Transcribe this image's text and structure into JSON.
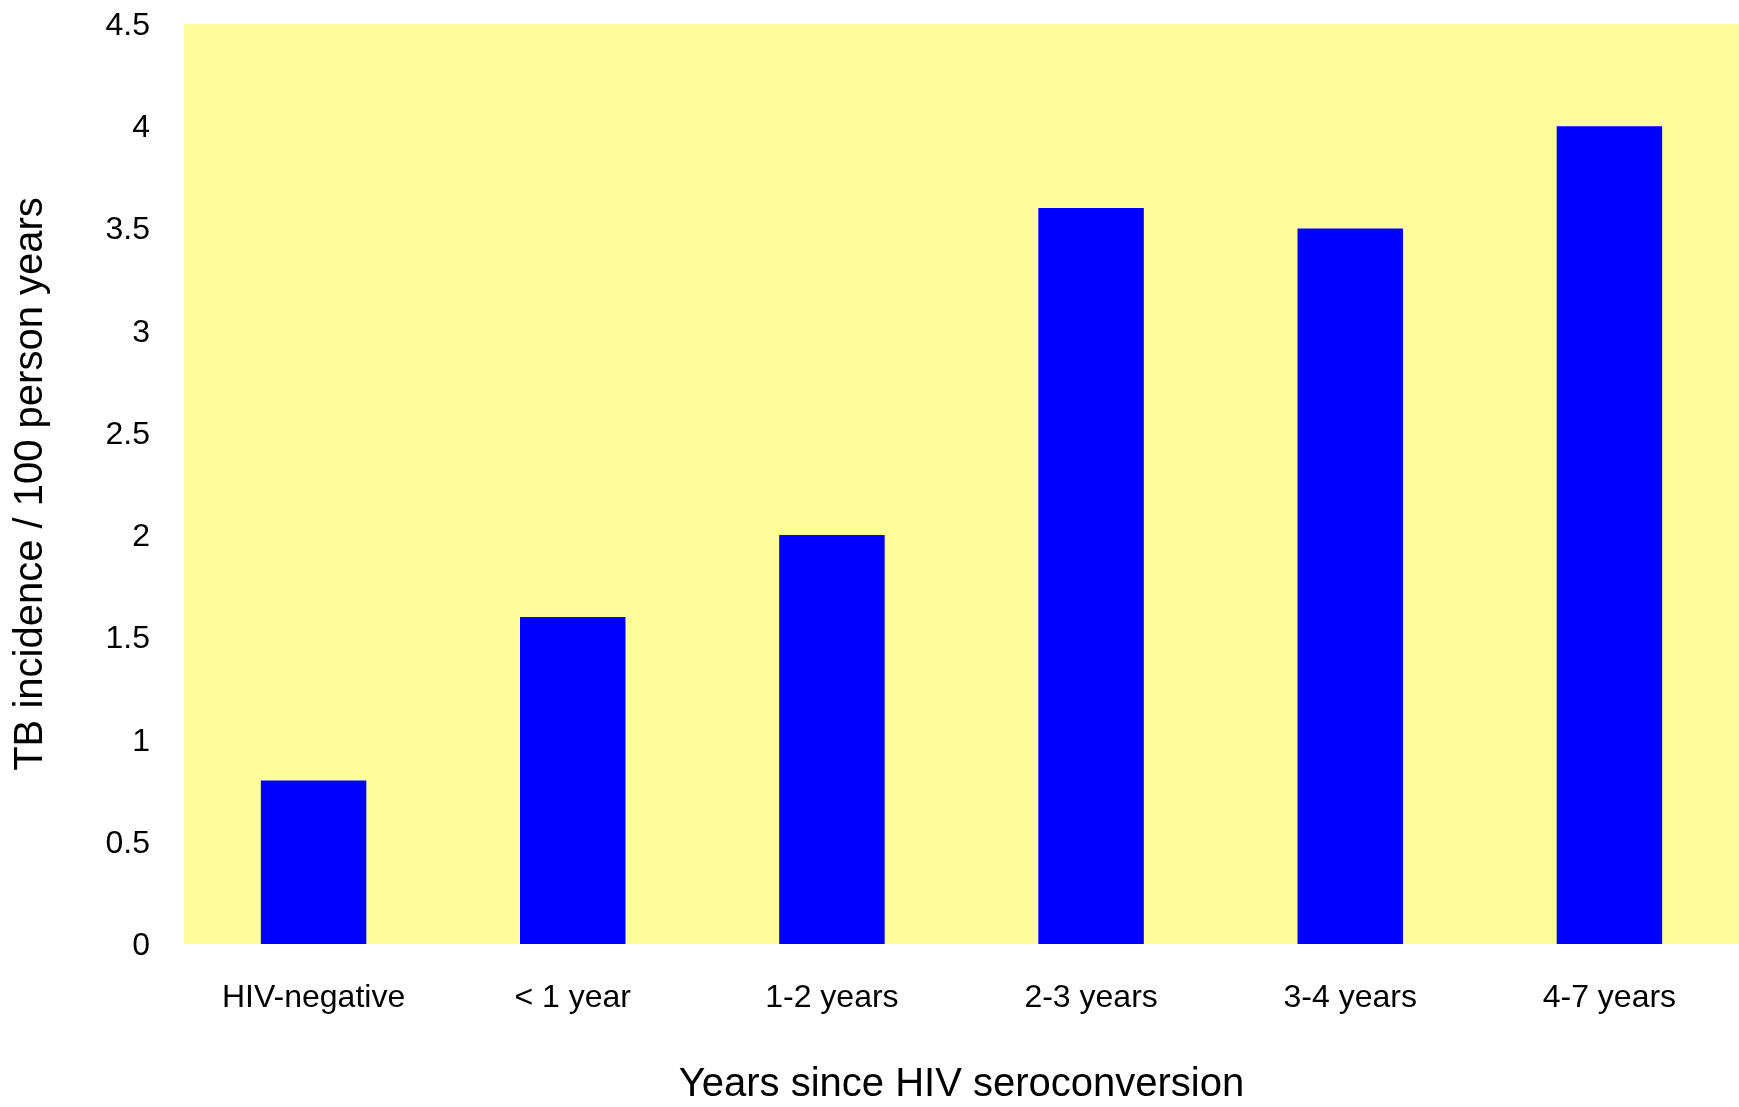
{
  "chart_data": {
    "type": "bar",
    "categories": [
      "HIV-negative",
      "< 1 year",
      "1-2 years",
      "2-3 years",
      "3-4 years",
      "4-7 years"
    ],
    "values": [
      0.8,
      1.6,
      2.0,
      3.6,
      3.5,
      4.0
    ],
    "color": "#0000ff",
    "xlabel": "Years since HIV seroconversion",
    "ylabel": "TB incidence / 100 person years",
    "ylim": [
      0,
      4.5
    ],
    "yticks": [
      0,
      0.5,
      1,
      1.5,
      2,
      2.5,
      3,
      3.5,
      4,
      4.5
    ],
    "grid": false
  }
}
